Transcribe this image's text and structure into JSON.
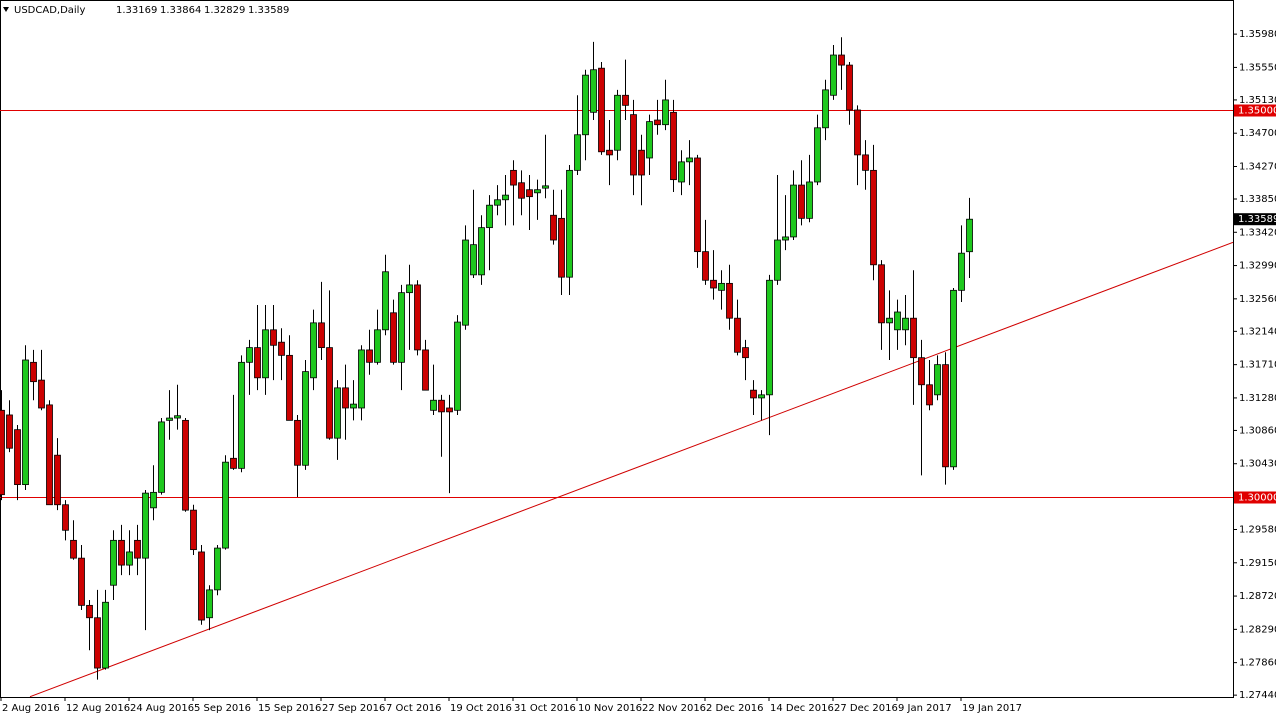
{
  "chart_data": {
    "type": "candlestick",
    "title": "USDCAD,Daily",
    "categories": [
      "2 Aug 2016",
      null,
      null,
      null,
      null,
      null,
      null,
      null,
      "12 Aug 2016",
      null,
      null,
      null,
      null,
      null,
      null,
      null,
      "24 Aug 2016",
      null,
      null,
      null,
      null,
      null,
      null,
      null,
      "5 Sep 2016",
      null,
      null,
      null,
      null,
      null,
      null,
      null,
      "15 Sep 2016",
      null,
      null,
      null,
      null,
      null,
      null,
      null,
      "27 Sep 2016",
      null,
      null,
      null,
      null,
      null,
      null,
      null,
      "7 Oct 2016",
      null,
      null,
      null,
      null,
      null,
      null,
      null,
      "19 Oct 2016",
      null,
      null,
      null,
      null,
      null,
      null,
      null,
      "31 Oct 2016",
      null,
      null,
      null,
      null,
      null,
      null,
      null,
      "10 Nov 2016",
      null,
      null,
      null,
      null,
      null,
      null,
      null,
      "22 Nov 2016",
      null,
      null,
      null,
      null,
      null,
      null,
      null,
      "2 Dec 2016",
      null,
      null,
      null,
      null,
      null,
      null,
      null,
      "14 Dec 2016",
      null,
      null,
      null,
      null,
      null,
      null,
      null,
      "27 Dec 2016",
      null,
      null,
      null,
      null,
      null,
      null,
      null,
      "9 Jan 2017",
      null,
      null,
      null,
      null,
      null,
      null,
      null,
      "19 Jan 2017",
      null
    ],
    "open": [
      1.3112,
      1.3106,
      1.3087,
      1.3016,
      1.3174,
      1.3151,
      1.3119,
      1.3054,
      1.299,
      1.2944,
      1.2921,
      1.286,
      1.2844,
      1.2779,
      1.2886,
      1.2944,
      1.2912,
      1.2944,
      1.2921,
      1.2986,
      1.3006,
      1.3099,
      1.3102,
      1.3099,
      1.2983,
      1.2929,
      1.2844,
      1.288,
      1.2934,
      1.305,
      1.3037,
      1.3174,
      1.3193,
      1.3154,
      1.3216,
      1.32,
      1.3183,
      1.3099,
      1.3041,
      1.3154,
      1.3225,
      1.3193,
      1.3076,
      1.3141,
      1.3115,
      1.3115,
      1.319,
      1.3174,
      1.3216,
      1.3238,
      1.3174,
      1.3264,
      1.3274,
      1.319,
      1.3112,
      1.3125,
      1.3115,
      1.3112,
      1.3222,
      1.3287,
      1.3287,
      1.3348,
      1.3377,
      1.3384,
      1.3422,
      1.3406,
      1.3397,
      1.3393,
      1.3399,
      1.3364,
      1.336,
      1.3284,
      1.3422,
      1.3468,
      1.3497,
      1.3554,
      1.3448,
      1.3448,
      1.3519,
      1.3494,
      1.3448,
      1.3438,
      1.3487,
      1.3481,
      1.3497,
      1.3407,
      1.3433,
      1.3438,
      1.3317,
      1.328,
      1.3267,
      1.3276,
      1.3231,
      1.3193,
      1.3138,
      1.3128,
      1.3132,
      1.328,
      1.3332,
      1.3336,
      1.3403,
      1.336,
      1.3407,
      1.3477,
      1.3519,
      1.3571,
      1.3558,
      1.35,
      1.3442,
      1.3422,
      1.33,
      1.3225,
      1.3216,
      1.3216,
      1.3231,
      1.318,
      1.3145,
      1.3132,
      1.3171,
      1.3039,
      1.3267,
      1.33169
    ],
    "high": [
      1.3138,
      1.3125,
      1.3093,
      1.3196,
      1.319,
      1.319,
      1.3125,
      1.3076,
      1.2996,
      1.297,
      1.2938,
      1.2867,
      1.288,
      1.288,
      1.2957,
      1.2964,
      1.2957,
      1.2964,
      1.3009,
      1.3041,
      1.3102,
      1.3138,
      1.3145,
      1.3102,
      1.299,
      1.2938,
      1.2886,
      1.2938,
      1.3054,
      1.3132,
      1.3183,
      1.3203,
      1.3248,
      1.3248,
      1.3248,
      1.3218,
      1.3209,
      1.3106,
      1.3177,
      1.3242,
      1.3278,
      1.3267,
      1.3151,
      1.3171,
      1.3151,
      1.3196,
      1.3216,
      1.3242,
      1.3313,
      1.3255,
      1.3274,
      1.33,
      1.328,
      1.3203,
      1.3171,
      1.3132,
      1.3132,
      1.3235,
      1.3351,
      1.3397,
      1.3364,
      1.339,
      1.3403,
      1.3416,
      1.3435,
      1.3422,
      1.3416,
      1.341,
      1.3468,
      1.3397,
      1.3397,
      1.3429,
      1.3519,
      1.3552,
      1.3588,
      1.3562,
      1.3487,
      1.3526,
      1.3565,
      1.3513,
      1.3468,
      1.3494,
      1.3513,
      1.3539,
      1.3513,
      1.3448,
      1.3461,
      1.3442,
      1.3358,
      1.3319,
      1.3293,
      1.33,
      1.3255,
      1.3203,
      1.3151,
      1.3138,
      1.3287,
      1.3416,
      1.339,
      1.3422,
      1.3435,
      1.3442,
      1.3494,
      1.3539,
      1.3584,
      1.3594,
      1.3562,
      1.3506,
      1.3461,
      1.3455,
      1.3306,
      1.3267,
      1.3255,
      1.3261,
      1.3293,
      1.3203,
      1.3177,
      1.3183,
      1.3187,
      1.327,
      1.3351,
      1.33864
    ],
    "low": [
      1.2996,
      1.3058,
      1.2996,
      1.3009,
      1.3125,
      1.3112,
      1.299,
      1.2983,
      1.2944,
      1.2919,
      1.2854,
      1.2802,
      1.2764,
      1.2777,
      1.2867,
      1.2899,
      1.2899,
      1.2899,
      1.2828,
      1.297,
      1.3003,
      1.3074,
      1.3087,
      1.2981,
      1.2925,
      1.2835,
      1.2828,
      1.2873,
      1.2932,
      1.3035,
      1.3032,
      1.3132,
      1.3138,
      1.3132,
      1.3151,
      1.3151,
      1.3099,
      1.3,
      1.3035,
      1.3138,
      1.3177,
      1.3074,
      1.3048,
      1.3074,
      1.3099,
      1.3099,
      1.3158,
      1.3171,
      1.3209,
      1.3171,
      1.3138,
      1.319,
      1.3183,
      1.3138,
      1.3106,
      1.3052,
      1.3005,
      1.3106,
      1.3216,
      1.3283,
      1.3274,
      1.3293,
      1.3364,
      1.3351,
      1.3351,
      1.3364,
      1.3345,
      1.3358,
      1.3386,
      1.3326,
      1.3261,
      1.3261,
      1.3416,
      1.3435,
      1.3487,
      1.3442,
      1.3403,
      1.3435,
      1.3487,
      1.339,
      1.3377,
      1.3416,
      1.3468,
      1.3474,
      1.3394,
      1.339,
      1.3403,
      1.3296,
      1.3274,
      1.3255,
      1.3242,
      1.3216,
      1.3183,
      1.3151,
      1.3106,
      1.3099,
      1.308,
      1.3274,
      1.3319,
      1.3332,
      1.3351,
      1.3355,
      1.3403,
      1.3461,
      1.3513,
      1.3526,
      1.3481,
      1.3403,
      1.3397,
      1.328,
      1.319,
      1.3177,
      1.319,
      1.3196,
      1.3119,
      1.3028,
      1.3112,
      1.3125,
      1.3016,
      1.3035,
      1.3252,
      1.32829
    ],
    "close": [
      1.3003,
      1.3063,
      1.3016,
      1.3177,
      1.3149,
      1.3115,
      1.299,
      1.299,
      1.2957,
      1.2921,
      1.286,
      1.2844,
      1.2779,
      1.2864,
      1.2944,
      1.2912,
      1.2929,
      1.2921,
      1.3005,
      1.3006,
      1.3097,
      1.3102,
      1.3105,
      1.2983,
      1.2932,
      1.2841,
      1.288,
      1.2934,
      1.3045,
      1.3037,
      1.3174,
      1.3193,
      1.3154,
      1.3216,
      1.3196,
      1.3183,
      1.3099,
      1.3041,
      1.3162,
      1.3225,
      1.3193,
      1.3076,
      1.3141,
      1.3115,
      1.312,
      1.319,
      1.3174,
      1.3216,
      1.3291,
      1.3174,
      1.3264,
      1.3274,
      1.319,
      1.3138,
      1.3125,
      1.311,
      1.311,
      1.3226,
      1.3332,
      1.3326,
      1.3348,
      1.3377,
      1.3384,
      1.339,
      1.3403,
      1.3386,
      1.3388,
      1.3397,
      1.3402,
      1.3332,
      1.3284,
      1.3422,
      1.3468,
      1.3545,
      1.3552,
      1.3446,
      1.3442,
      1.3519,
      1.3506,
      1.3416,
      1.3416,
      1.3485,
      1.3481,
      1.3513,
      1.341,
      1.3433,
      1.3438,
      1.3317,
      1.328,
      1.327,
      1.3276,
      1.3231,
      1.3187,
      1.318,
      1.3128,
      1.3132,
      1.328,
      1.3332,
      1.3336,
      1.3403,
      1.336,
      1.3407,
      1.3477,
      1.3526,
      1.3571,
      1.3558,
      1.35,
      1.3442,
      1.3422,
      1.33,
      1.3225,
      1.3231,
      1.3239,
      1.3231,
      1.318,
      1.3145,
      1.3119,
      1.3171,
      1.3039,
      1.3267,
      1.3315,
      1.33589
    ],
    "up_color": "#1ec81e",
    "down_color": "#cc0000",
    "wick_color": "#000000",
    "ylim": [
      1.27416,
      1.36421
    ],
    "yticks": [
      {
        "value": 1.3598,
        "label": "1.35980"
      },
      {
        "value": 1.3555,
        "label": "1.35550"
      },
      {
        "value": 1.3513,
        "label": "1.35130"
      },
      {
        "value": 1.347,
        "label": "1.34700"
      },
      {
        "value": 1.3427,
        "label": "1.34270"
      },
      {
        "value": 1.3385,
        "label": "1.33850"
      },
      {
        "value": 1.3342,
        "label": "1.33420"
      },
      {
        "value": 1.3299,
        "label": "1.32990"
      },
      {
        "value": 1.3256,
        "label": "1.32560"
      },
      {
        "value": 1.3214,
        "label": "1.32140"
      },
      {
        "value": 1.3171,
        "label": "1.31710"
      },
      {
        "value": 1.3128,
        "label": "1.31280"
      },
      {
        "value": 1.3086,
        "label": "1.30860"
      },
      {
        "value": 1.3043,
        "label": "1.30430"
      },
      {
        "value": 1.2958,
        "label": "1.29580"
      },
      {
        "value": 1.2915,
        "label": "1.29150"
      },
      {
        "value": 1.2872,
        "label": "1.28720"
      },
      {
        "value": 1.2829,
        "label": "1.28290"
      },
      {
        "value": 1.2786,
        "label": "1.27860"
      },
      {
        "value": 1.2744,
        "label": "1.27440"
      }
    ],
    "levels": [
      {
        "value": 1.35,
        "label": "1.35000"
      },
      {
        "value": 1.3,
        "label": "1.30000"
      }
    ],
    "level_color": "#e00000",
    "trendline": {
      "x": [
        3.625,
        154
      ],
      "y": [
        1.2742,
        1.3329
      ],
      "color": "#d00000"
    }
  }
}
